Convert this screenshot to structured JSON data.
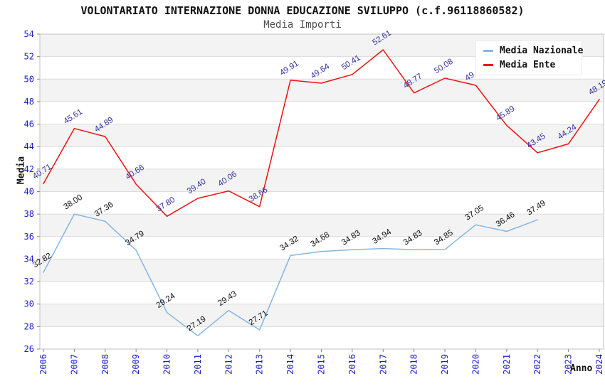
{
  "header": {
    "title": "VOLONTARIATO INTERNAZIONE DONNA EDUCAZIONE SVILUPPO (c.f.96118860582)",
    "subtitle": "Media Importi"
  },
  "chart_data": {
    "type": "line",
    "title": "VOLONTARIATO INTERNAZIONE DONNA EDUCAZIONE SVILUPPO (c.f.96118860582)",
    "subtitle": "Media Importi",
    "xlabel": "Anno",
    "ylabel": "Media",
    "ylim": [
      26,
      54
    ],
    "ytick_step": 2,
    "grid": "horizontal-bands-alternating",
    "legend_position": "top-right",
    "categories": [
      "2006",
      "2007",
      "2008",
      "2009",
      "2010",
      "2011",
      "2012",
      "2013",
      "2014",
      "2015",
      "2016",
      "2017",
      "2018",
      "2019",
      "2020",
      "2021",
      "2022",
      "2023",
      "2024"
    ],
    "series": [
      {
        "name": "Media Nazionale",
        "color": "#86b5e3",
        "label_color": "#111111",
        "values": [
          32.82,
          38.0,
          37.36,
          34.79,
          29.24,
          27.19,
          29.43,
          27.71,
          34.32,
          34.68,
          34.83,
          34.94,
          34.83,
          34.85,
          37.05,
          36.46,
          37.49,
          null,
          null
        ]
      },
      {
        "name": "Media Ente",
        "color": "#ee1111",
        "label_color": "#333399",
        "values": [
          40.71,
          45.61,
          44.89,
          40.66,
          37.8,
          39.4,
          40.06,
          38.66,
          49.91,
          49.64,
          50.41,
          52.61,
          48.77,
          50.08,
          49.45,
          45.89,
          43.45,
          44.24,
          48.19
        ]
      }
    ]
  },
  "colors": {
    "band_gray": "#f3f3f3",
    "band_white": "#ffffff",
    "gridline": "#dcdcdc",
    "plot_border": "#c0c0c0",
    "tick_mark": "#8a8a8a",
    "axis_tick_label": "#1a1acd"
  }
}
